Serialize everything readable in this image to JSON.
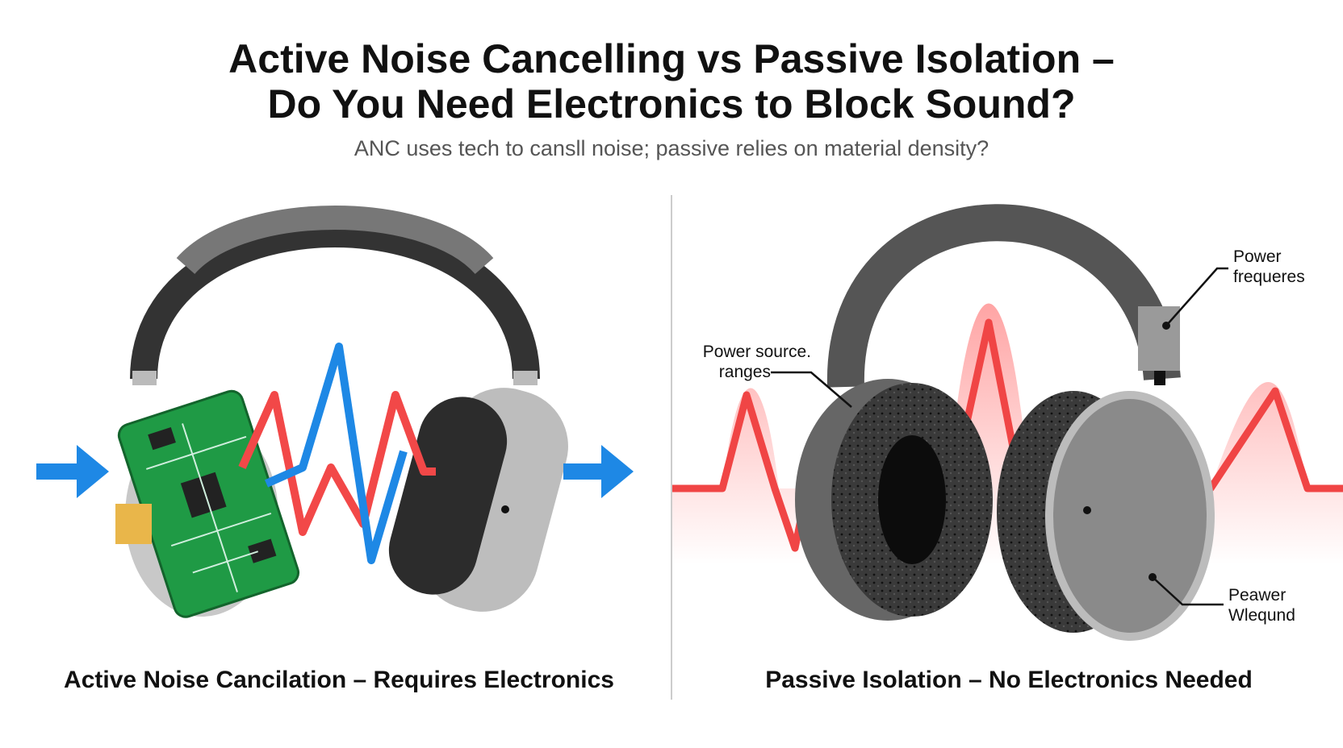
{
  "header": {
    "title_lines": [
      "Active Noise Cancelling vs Passive Isolation –",
      "Do You Need Electronics to Block Sound?"
    ],
    "subtitle": "ANC uses tech to cansll noise; passive relies on material density?"
  },
  "panels": [
    {
      "caption": "Active Noise Cancilation – Requires Electronics"
    },
    {
      "caption": "Passive Isolation – No Electronics Needed",
      "annotations": [
        {
          "lines": [
            "Power",
            "frequeres"
          ]
        },
        {
          "lines": [
            "Power source.",
            "ranges"
          ]
        },
        {
          "lines": [
            "Peawer",
            "Wleqund"
          ]
        }
      ]
    }
  ]
}
